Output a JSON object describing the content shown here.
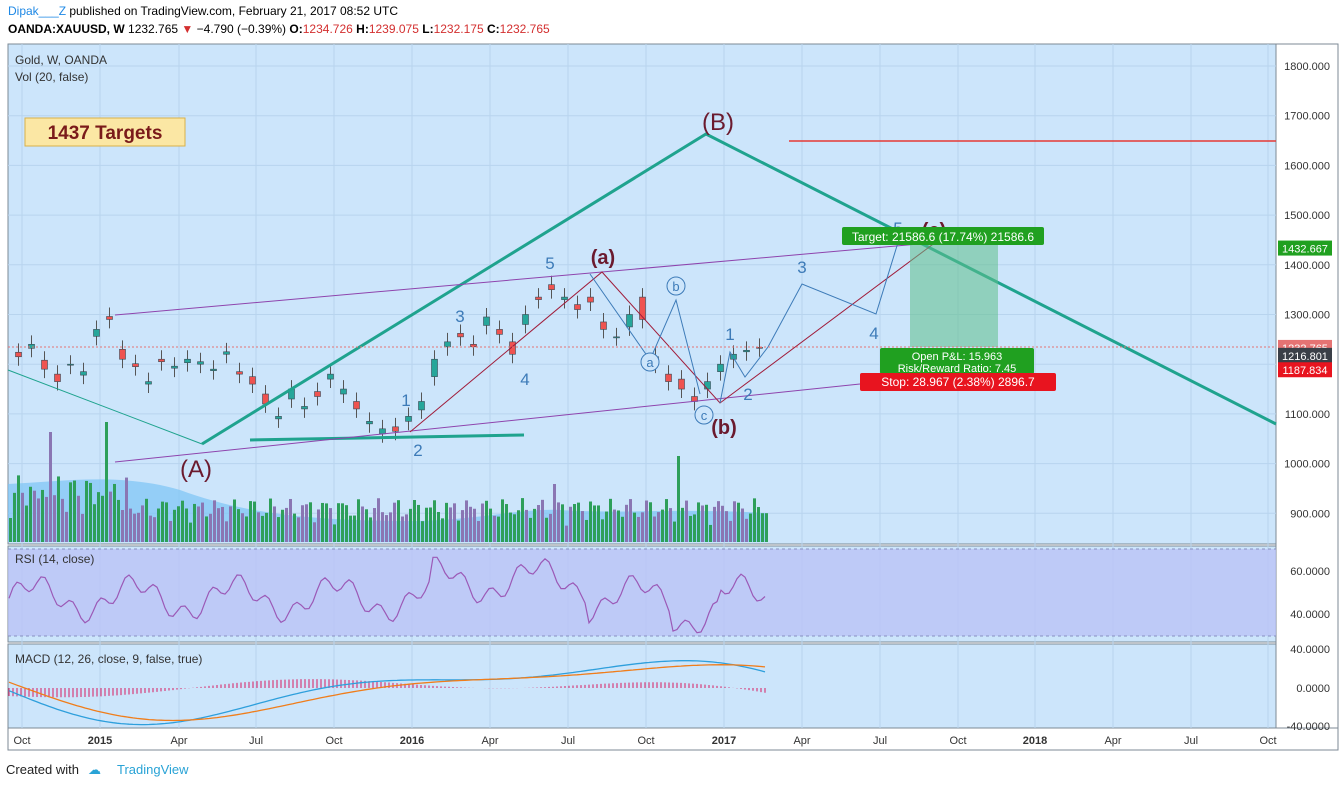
{
  "header": {
    "user": "Dipak___Z",
    "published": "published on TradingView.com, February 21, 2017 08:52 UTC",
    "symbol": "OANDA:XAUUSD, W",
    "last": "1232.765",
    "change": "−4.790 (−0.39%)",
    "o_label": "O:",
    "o": "1234.726",
    "h_label": "H:",
    "h": "1239.075",
    "l_label": "L:",
    "l": "1232.175",
    "c_label": "C:",
    "c": "1232.765"
  },
  "panels": {
    "main_title": "Gold, W, OANDA",
    "vol_title": "Vol (20, false)",
    "rsi_title": "RSI (14, close)",
    "macd_title": "MACD (12, 26, close, 9, false, true)"
  },
  "annotations": {
    "targets_box": "1437 Targets",
    "target_label": "Target: 21586.6 (17.74%) 21586.6",
    "open_pl": "Open P&L: 15.963",
    "risk_reward": "Risk/Reward Ratio: 7.45",
    "stop_label": "Stop: 28.967 (2.38%) 2896.7"
  },
  "colors": {
    "background": "#cce5fb",
    "bull": "#26a69a",
    "bear": "#ef5350",
    "trend_green": "#1fa38e",
    "channel_purple": "#8e44ad",
    "red_line": "#e53935",
    "wave_blue": "#3d7bb8",
    "wave_dark": "#6b1a2e",
    "target_green": "#20a020",
    "stop_red": "#e8141f"
  },
  "footer": {
    "created_with": "Created with",
    "brand": "TradingView"
  },
  "chart_data": {
    "type": "candlestick",
    "title": "Gold, W, OANDA",
    "y_ticks": [
      "1800.000",
      "1700.000",
      "1600.000",
      "1500.000",
      "1400.000",
      "1300.000",
      "1200.000",
      "1100.000",
      "1000.000",
      "900.000"
    ],
    "x_ticks": [
      "Oct",
      "2015",
      "Apr",
      "Jul",
      "Oct",
      "2016",
      "Apr",
      "Jul",
      "Oct",
      "2017",
      "Apr",
      "Jul",
      "Oct",
      "2018",
      "Apr",
      "Jul",
      "Oct"
    ],
    "price_badges": [
      "1432.667",
      "1232.765",
      "1216.801",
      "1187.834"
    ],
    "close_path": [
      [
        1224,
        1215
      ],
      [
        1232,
        1240
      ],
      [
        1208,
        1190
      ],
      [
        1180,
        1165
      ],
      [
        1198,
        1200
      ],
      [
        1178,
        1185
      ],
      [
        1256,
        1270
      ],
      [
        1296,
        1290
      ],
      [
        1230,
        1210
      ],
      [
        1201,
        1195
      ],
      [
        1160,
        1165
      ],
      [
        1210,
        1205
      ],
      [
        1192,
        1196
      ],
      [
        1203,
        1210
      ],
      [
        1200,
        1205
      ],
      [
        1187,
        1190
      ],
      [
        1220,
        1225
      ],
      [
        1185,
        1180
      ],
      [
        1175,
        1160
      ],
      [
        1140,
        1120
      ],
      [
        1090,
        1095
      ],
      [
        1130,
        1150
      ],
      [
        1110,
        1115
      ],
      [
        1145,
        1135
      ],
      [
        1170,
        1180
      ],
      [
        1140,
        1150
      ],
      [
        1125,
        1110
      ],
      [
        1080,
        1085
      ],
      [
        1060,
        1070
      ],
      [
        1074,
        1065
      ],
      [
        1085,
        1095
      ],
      [
        1108,
        1125
      ],
      [
        1175,
        1210
      ],
      [
        1235,
        1245
      ],
      [
        1262,
        1255
      ],
      [
        1240,
        1235
      ],
      [
        1278,
        1295
      ],
      [
        1270,
        1260
      ],
      [
        1245,
        1220
      ],
      [
        1280,
        1300
      ],
      [
        1335,
        1330
      ],
      [
        1360,
        1350
      ],
      [
        1330,
        1335
      ],
      [
        1320,
        1310
      ],
      [
        1335,
        1325
      ],
      [
        1285,
        1270
      ],
      [
        1255,
        1255
      ],
      [
        1275,
        1300
      ],
      [
        1335,
        1290
      ],
      [
        1215,
        1200
      ],
      [
        1180,
        1165
      ],
      [
        1170,
        1150
      ],
      [
        1135,
        1125
      ],
      [
        1150,
        1165
      ],
      [
        1185,
        1200
      ],
      [
        1210,
        1220
      ],
      [
        1225,
        1228
      ],
      [
        1234,
        1233
      ]
    ],
    "volume_hint": "volume bars with 20-period moving average area",
    "waves": {
      "primary": [
        "(A)",
        "(B)"
      ],
      "intermediate": [
        "(a)",
        "(b)",
        "(c)"
      ],
      "impulse_labels": [
        "1",
        "2",
        "3",
        "4",
        "5",
        "4",
        "1",
        "2",
        "3",
        "4",
        "5"
      ],
      "circle_labels": [
        "a",
        "b",
        "c"
      ]
    },
    "rsi": {
      "ticks": [
        "60.0000",
        "40.0000"
      ]
    },
    "macd": {
      "ticks": [
        "40.0000",
        "0.0000",
        "-40.0000"
      ]
    }
  }
}
